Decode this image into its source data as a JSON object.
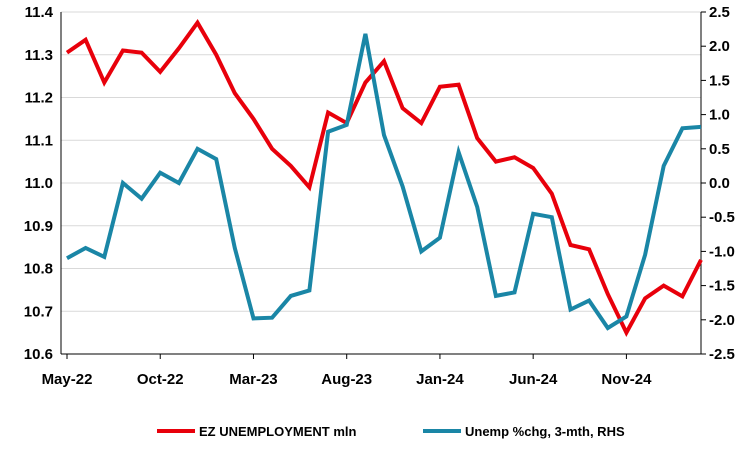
{
  "chart_data": {
    "type": "line",
    "x_tick_labels": [
      "May-22",
      "Oct-22",
      "Mar-23",
      "Aug-23",
      "Jan-24",
      "Jun-24",
      "Nov-24"
    ],
    "x": [
      "May-22",
      "Jun-22",
      "Jul-22",
      "Aug-22",
      "Sep-22",
      "Oct-22",
      "Nov-22",
      "Dec-22",
      "Jan-23",
      "Feb-23",
      "Mar-23",
      "Apr-23",
      "May-23",
      "Jun-23",
      "Jul-23",
      "Aug-23",
      "Sep-23",
      "Oct-23",
      "Nov-23",
      "Dec-23",
      "Jan-24",
      "Feb-24",
      "Mar-24",
      "Apr-24",
      "May-24",
      "Jun-24",
      "Jul-24",
      "Aug-24",
      "Sep-24",
      "Oct-24",
      "Nov-24",
      "Dec-24",
      "Jan-25",
      "Feb-25",
      "Mar-25"
    ],
    "y_left": {
      "min": 10.6,
      "max": 11.4,
      "ticks": [
        "10.6",
        "10.7",
        "10.8",
        "10.9",
        "11.0",
        "11.1",
        "11.2",
        "11.3",
        "11.4"
      ]
    },
    "y_right": {
      "min": -2.5,
      "max": 2.5,
      "ticks": [
        "2.5",
        "2.0",
        "1.5",
        "1.0",
        "0.5",
        "0.0",
        "-0.5",
        "-1.0",
        "-1.5",
        "-2.0",
        "-2.5"
      ]
    },
    "grid": true,
    "legend_position": "bottom",
    "series": [
      {
        "name": "EZ UNEMPLOYMENT mln",
        "axis": "left",
        "color": "#e8000b",
        "values": [
          11.305,
          11.335,
          11.235,
          11.31,
          11.305,
          11.26,
          11.315,
          11.375,
          11.3,
          11.21,
          11.15,
          11.08,
          11.04,
          10.99,
          11.165,
          11.14,
          11.235,
          11.285,
          11.175,
          11.14,
          11.225,
          11.23,
          11.105,
          11.05,
          11.06,
          11.035,
          10.975,
          10.855,
          10.845,
          10.74,
          10.65,
          10.73,
          10.76,
          10.735,
          10.82
        ]
      },
      {
        "name": "Unemp %chg, 3-mth, RHS",
        "axis": "right",
        "color": "#1a86a6",
        "values": [
          -1.1,
          -0.95,
          -1.08,
          0.0,
          -0.23,
          0.15,
          0.0,
          0.5,
          0.35,
          -0.95,
          -1.98,
          -1.97,
          -1.65,
          -1.57,
          0.75,
          0.85,
          2.18,
          0.7,
          -0.05,
          -1.0,
          -0.8,
          0.45,
          -0.35,
          -1.65,
          -1.6,
          -0.45,
          -0.5,
          -1.85,
          -1.72,
          -2.12,
          -1.95,
          -1.05,
          0.25,
          0.8,
          0.82
        ]
      }
    ]
  }
}
